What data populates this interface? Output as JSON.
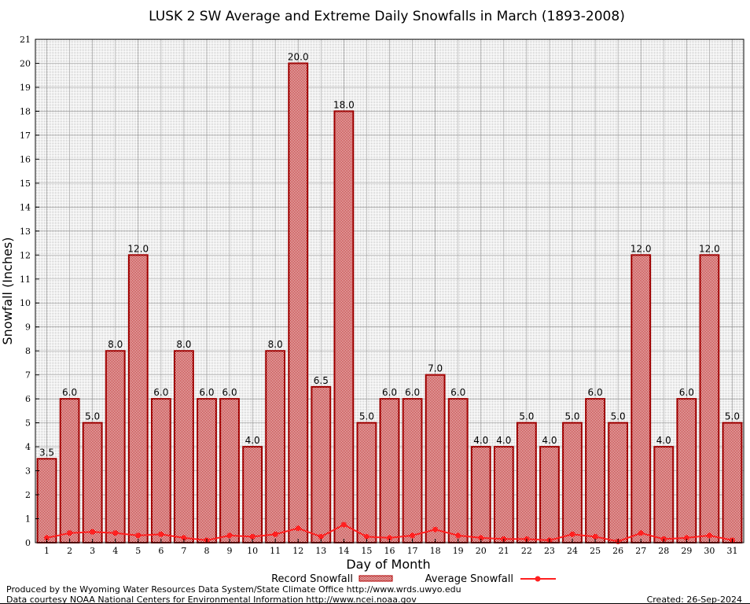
{
  "chart_data": {
    "type": "bar",
    "title": "LUSK 2 SW Average and Extreme Daily Snowfalls in March (1893-2008)",
    "xlabel": "Day of Month",
    "ylabel": "Snowfall (Inches)",
    "ylim": [
      0,
      21
    ],
    "yticks": [
      "0",
      "1",
      "2",
      "3",
      "4",
      "5",
      "6",
      "7",
      "8",
      "9",
      "10",
      "11",
      "12",
      "13",
      "14",
      "15",
      "16",
      "17",
      "18",
      "19",
      "20",
      "21"
    ],
    "categories": [
      "1",
      "2",
      "3",
      "4",
      "5",
      "6",
      "7",
      "8",
      "9",
      "10",
      "11",
      "12",
      "13",
      "14",
      "15",
      "16",
      "17",
      "18",
      "19",
      "20",
      "21",
      "22",
      "23",
      "24",
      "25",
      "26",
      "27",
      "28",
      "29",
      "30",
      "31"
    ],
    "grid": true,
    "legend_position": "bottom",
    "series": [
      {
        "name": "Record Snowfall",
        "type": "bar",
        "color": "#cc0000",
        "values": [
          3.5,
          6.0,
          5.0,
          8.0,
          12.0,
          6.0,
          8.0,
          6.0,
          6.0,
          4.0,
          8.0,
          20.0,
          6.5,
          18.0,
          5.0,
          6.0,
          6.0,
          7.0,
          6.0,
          4.0,
          4.0,
          5.0,
          4.0,
          5.0,
          6.0,
          5.0,
          12.0,
          4.0,
          6.0,
          12.0,
          5.0
        ],
        "labels": [
          "3.5",
          "6.0",
          "5.0",
          "8.0",
          "12.0",
          "6.0",
          "8.0",
          "6.0",
          "6.0",
          "4.0",
          "8.0",
          "20.0",
          "6.5",
          "18.0",
          "5.0",
          "6.0",
          "6.0",
          "7.0",
          "6.0",
          "4.0",
          "4.0",
          "5.0",
          "4.0",
          "5.0",
          "6.0",
          "5.0",
          "12.0",
          "4.0",
          "6.0",
          "12.0",
          "5.0"
        ]
      },
      {
        "name": "Average Snowfall",
        "type": "line",
        "color": "#ff2020",
        "values": [
          0.2,
          0.4,
          0.45,
          0.4,
          0.3,
          0.35,
          0.2,
          0.1,
          0.3,
          0.25,
          0.35,
          0.6,
          0.25,
          0.75,
          0.25,
          0.2,
          0.3,
          0.55,
          0.3,
          0.2,
          0.15,
          0.15,
          0.1,
          0.35,
          0.25,
          0.05,
          0.4,
          0.15,
          0.2,
          0.3,
          0.1
        ]
      }
    ]
  },
  "footer": {
    "line1": "Produced by the Wyoming Water Resources Data System/State Climate Office http://www.wrds.uwyo.edu",
    "line2": "Data courtesy NOAA National Centers for Environmental Information http://www.ncei.noaa.gov",
    "created": "Created: 26-Sep-2024"
  }
}
